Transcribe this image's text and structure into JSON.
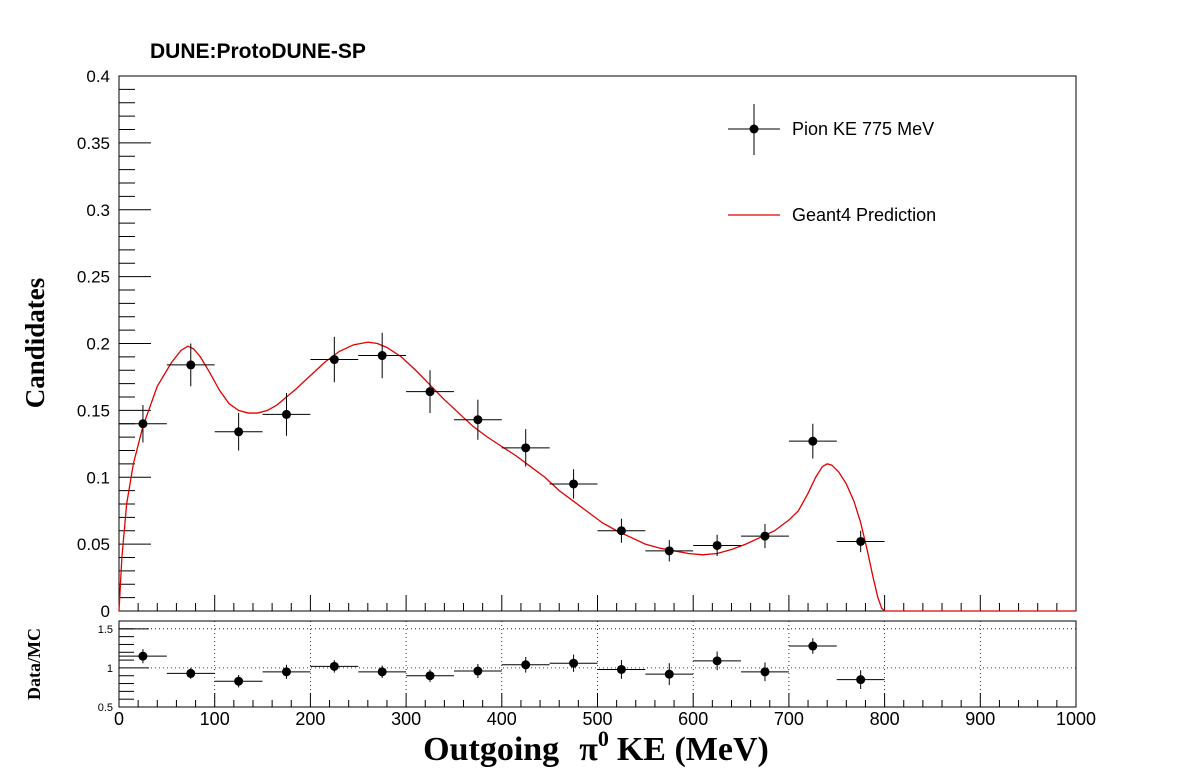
{
  "chart_data": {
    "type": "scatter",
    "title": "DUNE:ProtoDUNE-SP",
    "xlabel_main": "Outgoing",
    "xlabel_symbol": "π",
    "xlabel_superscript": "0",
    "xlabel_tail": "KE (MeV)",
    "ylabel": "Candidates",
    "xlim": [
      0,
      1000
    ],
    "ylim": [
      0,
      0.4
    ],
    "x_ticks": [
      0,
      100,
      200,
      300,
      400,
      500,
      600,
      700,
      800,
      900,
      1000
    ],
    "x_tick_labels": [
      "0",
      "100",
      "200",
      "300",
      "400",
      "500",
      "600",
      "700",
      "800",
      "900",
      "1000"
    ],
    "y_ticks": [
      0,
      0.05,
      0.1,
      0.15,
      0.2,
      0.25,
      0.3,
      0.35,
      0.4
    ],
    "y_tick_labels": [
      "0",
      "0.05",
      "0.1",
      "0.15",
      "0.2",
      "0.25",
      "0.3",
      "0.35",
      "0.4"
    ],
    "legend_position": "top-right",
    "legend": [
      {
        "label": "Pion KE 775 MeV",
        "style": "marker",
        "color": "#000000"
      },
      {
        "label": "Geant4 Prediction",
        "style": "line",
        "color": "#e00000"
      }
    ],
    "data_points": {
      "x": [
        25,
        75,
        125,
        175,
        225,
        275,
        325,
        375,
        425,
        475,
        525,
        575,
        625,
        675,
        725,
        775
      ],
      "y": [
        0.14,
        0.184,
        0.134,
        0.147,
        0.188,
        0.191,
        0.164,
        0.143,
        0.122,
        0.095,
        0.06,
        0.045,
        0.049,
        0.056,
        0.127,
        0.052
      ],
      "x_error": 25,
      "y_error": [
        0.014,
        0.016,
        0.014,
        0.016,
        0.017,
        0.017,
        0.016,
        0.015,
        0.014,
        0.011,
        0.009,
        0.008,
        0.008,
        0.009,
        0.013,
        0.008
      ]
    },
    "prediction": {
      "x": [
        0,
        3,
        8,
        15,
        25,
        40,
        55,
        65,
        72,
        78,
        85,
        95,
        105,
        115,
        125,
        135,
        145,
        155,
        165,
        175,
        185,
        200,
        215,
        230,
        245,
        260,
        270,
        280,
        295,
        310,
        325,
        340,
        355,
        370,
        385,
        400,
        415,
        430,
        445,
        460,
        475,
        490,
        505,
        520,
        535,
        550,
        565,
        580,
        595,
        610,
        625,
        640,
        655,
        670,
        685,
        700,
        710,
        720,
        728,
        735,
        740,
        745,
        752,
        760,
        768,
        775,
        782,
        788,
        793,
        797,
        800,
        1000
      ],
      "y": [
        0.0,
        0.04,
        0.08,
        0.11,
        0.138,
        0.168,
        0.186,
        0.195,
        0.198,
        0.196,
        0.19,
        0.178,
        0.165,
        0.155,
        0.15,
        0.148,
        0.148,
        0.15,
        0.154,
        0.16,
        0.166,
        0.176,
        0.186,
        0.194,
        0.199,
        0.201,
        0.2,
        0.197,
        0.19,
        0.18,
        0.169,
        0.158,
        0.148,
        0.138,
        0.13,
        0.123,
        0.116,
        0.108,
        0.1,
        0.09,
        0.082,
        0.074,
        0.066,
        0.06,
        0.055,
        0.05,
        0.047,
        0.045,
        0.043,
        0.042,
        0.043,
        0.046,
        0.05,
        0.055,
        0.06,
        0.068,
        0.075,
        0.088,
        0.1,
        0.108,
        0.11,
        0.109,
        0.104,
        0.095,
        0.082,
        0.066,
        0.045,
        0.025,
        0.01,
        0.002,
        0.0,
        0.0
      ]
    },
    "ratio_panel": {
      "ylabel": "Data/MC",
      "ylim": [
        0.5,
        1.6
      ],
      "y_ticks": [
        0.5,
        1,
        1.5
      ],
      "y_tick_labels": [
        "0.5",
        "1",
        "1.5"
      ],
      "grid": true,
      "x": [
        25,
        75,
        125,
        175,
        225,
        275,
        325,
        375,
        425,
        475,
        525,
        575,
        625,
        675,
        725,
        775
      ],
      "y": [
        1.15,
        0.93,
        0.83,
        0.95,
        1.02,
        0.95,
        0.9,
        0.96,
        1.04,
        1.06,
        0.98,
        0.92,
        1.09,
        0.95,
        1.28,
        0.85
      ],
      "y_error": [
        0.09,
        0.07,
        0.08,
        0.09,
        0.08,
        0.08,
        0.08,
        0.09,
        0.1,
        0.11,
        0.12,
        0.14,
        0.12,
        0.12,
        0.1,
        0.12
      ]
    }
  }
}
